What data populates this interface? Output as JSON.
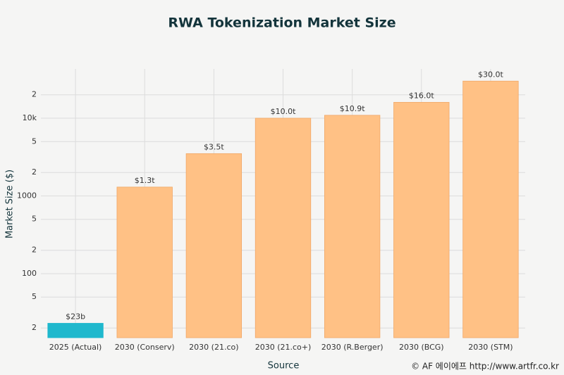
{
  "chart_data": {
    "type": "bar",
    "title": "RWA Tokenization Market Size",
    "x_label": "Source",
    "y_label": "Market Size ($)",
    "categories": [
      "2025 (Actual)",
      "2030 (Conserv)",
      "2030 (21.co)",
      "2030 (21.co+)",
      "2030 (R.Berger)",
      "2030 (BCG)",
      "2030 (STM)"
    ],
    "values": [
      23,
      1300,
      3500,
      10000,
      10900,
      16000,
      30000
    ],
    "value_labels": [
      "$23b",
      "$1.3t",
      "$3.5t",
      "$10.0t",
      "$10.9t",
      "$16.0t",
      "$30.0t"
    ],
    "colors": [
      "#1fb8cd",
      "#ffc185",
      "#ffc185",
      "#ffc185",
      "#ffc185",
      "#ffc185",
      "#ffc185"
    ],
    "y_scale": "log",
    "ylim": [
      15,
      43000
    ],
    "yticks": [
      {
        "value": 20,
        "label": "2"
      },
      {
        "value": 50,
        "label": "5"
      },
      100,
      {
        "value": 200,
        "label": "2"
      },
      {
        "value": 500,
        "label": "5"
      },
      1000,
      {
        "value": 2000,
        "label": "2"
      },
      {
        "value": 5000,
        "label": "5"
      },
      {
        "value": 10000,
        "label": "10k"
      },
      {
        "value": 20000,
        "label": "2"
      }
    ],
    "grid": true
  },
  "footer": "© AF 에이에프  http://www.artfr.co.kr"
}
